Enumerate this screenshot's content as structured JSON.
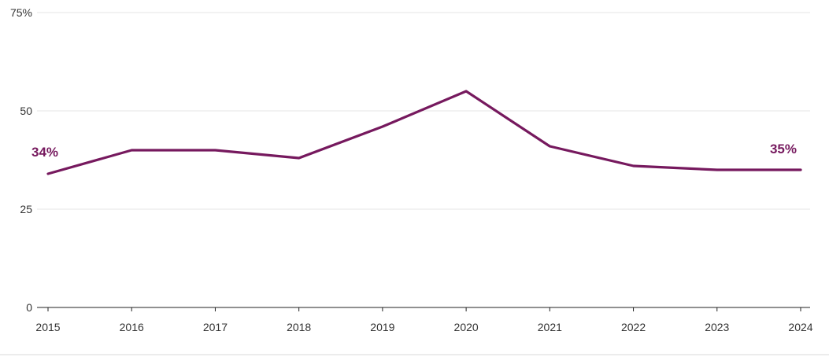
{
  "chart_data": {
    "type": "line",
    "x": [
      "2015",
      "2016",
      "2017",
      "2018",
      "2019",
      "2020",
      "2021",
      "2022",
      "2023",
      "2024"
    ],
    "series": [
      {
        "values": [
          34,
          40,
          40,
          38,
          46,
          55,
          41,
          36,
          35,
          35
        ],
        "color": "#76195e"
      }
    ],
    "ylim": [
      0,
      75
    ],
    "yticks": [
      "0",
      "25",
      "50",
      "75%"
    ],
    "ytick_values": [
      0,
      25,
      50,
      75
    ],
    "end_labels": {
      "first": "34%",
      "last": "35%"
    },
    "grid": true,
    "legend": "none"
  }
}
